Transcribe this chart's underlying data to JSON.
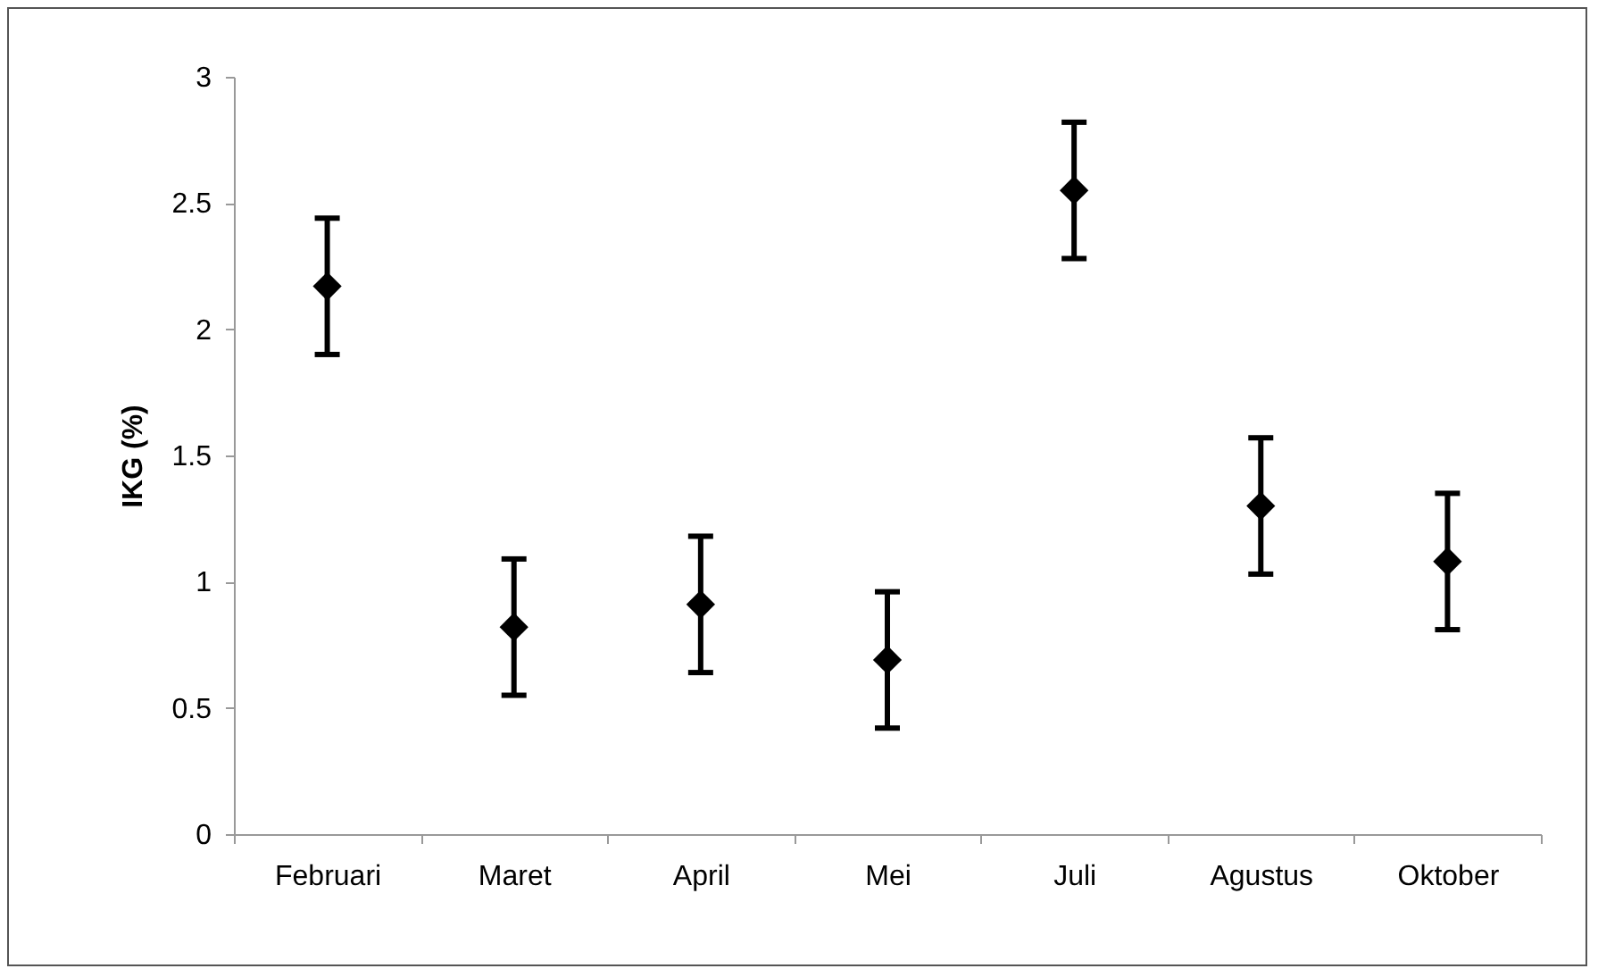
{
  "chart_data": {
    "type": "scatter",
    "ylabel": "IKG (%)",
    "categories": [
      "Februari",
      "Maret",
      "April",
      "Mei",
      "Juli",
      "Agustus",
      "Oktober"
    ],
    "values": [
      2.17,
      0.82,
      0.91,
      0.69,
      2.55,
      1.3,
      1.08
    ],
    "errors": [
      0.27,
      0.27,
      0.27,
      0.27,
      0.27,
      0.27,
      0.27
    ],
    "color": "#000000",
    "marker": "diamond",
    "ylim": [
      0,
      3
    ],
    "yticks": [
      0,
      0.5,
      1,
      1.5,
      2,
      2.5,
      3
    ],
    "grid": false
  }
}
